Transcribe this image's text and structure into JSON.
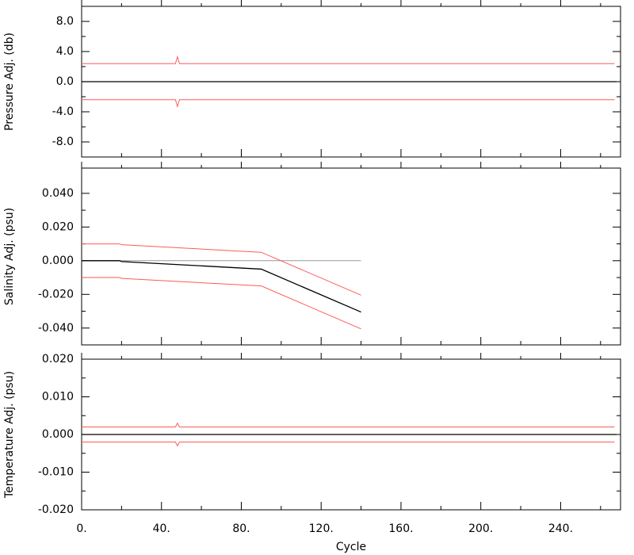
{
  "chart_data": [
    {
      "type": "line",
      "ylabel": "Pressure Adj. (db)",
      "ylim": [
        -10,
        10
      ],
      "yticks": [
        {
          "value": 8,
          "label": "8.0"
        },
        {
          "value": 4,
          "label": "4.0"
        },
        {
          "value": 0,
          "label": "0.0"
        },
        {
          "value": -4,
          "label": "-4.0"
        },
        {
          "value": -8,
          "label": "-8.0"
        }
      ],
      "series": [
        {
          "color": "#000000",
          "x": [
            0,
            268
          ],
          "values": [
            0,
            0
          ]
        },
        {
          "color": "#ff5a5a",
          "x": [
            0,
            47,
            48,
            49,
            267
          ],
          "values": [
            2.4,
            2.4,
            3.3,
            2.4,
            2.4
          ]
        },
        {
          "color": "#ff5a5a",
          "x": [
            0,
            47,
            48,
            49,
            267
          ],
          "values": [
            -2.4,
            -2.4,
            -3.3,
            -2.4,
            -2.4
          ]
        }
      ]
    },
    {
      "type": "line",
      "ylabel": "Salinity Adj. (psu)",
      "ylim": [
        -0.05,
        0.055
      ],
      "yticks": [
        {
          "value": 0.04,
          "label": "0.040"
        },
        {
          "value": 0.02,
          "label": "0.020"
        },
        {
          "value": 0,
          "label": "0.000"
        },
        {
          "value": -0.02,
          "label": "-0.020"
        },
        {
          "value": -0.04,
          "label": "-0.040"
        }
      ],
      "series": [
        {
          "color": "#999999",
          "x": [
            0,
            140
          ],
          "values": [
            0,
            0
          ]
        },
        {
          "color": "#000000",
          "x": [
            0,
            19,
            20,
            90,
            140
          ],
          "values": [
            0,
            0,
            -0.0005,
            -0.005,
            -0.0305
          ]
        },
        {
          "color": "#ff5a5a",
          "x": [
            0,
            19,
            20,
            90,
            140
          ],
          "values": [
            0.01,
            0.01,
            0.0095,
            0.005,
            -0.0205
          ]
        },
        {
          "color": "#ff5a5a",
          "x": [
            0,
            19,
            20,
            90,
            140
          ],
          "values": [
            -0.01,
            -0.01,
            -0.0105,
            -0.015,
            -0.0405
          ]
        }
      ]
    },
    {
      "type": "line",
      "ylabel": "Temperature Adj. (psu)",
      "xlabel": "Cycle",
      "xlim": [
        0,
        270
      ],
      "xticks": [
        {
          "value": 0,
          "label": "0."
        },
        {
          "value": 40,
          "label": "40."
        },
        {
          "value": 80,
          "label": "80."
        },
        {
          "value": 120,
          "label": "120."
        },
        {
          "value": 160,
          "label": "160."
        },
        {
          "value": 200,
          "label": "200."
        },
        {
          "value": 240,
          "label": "240."
        }
      ],
      "ylim": [
        -0.02,
        0.02
      ],
      "yticks": [
        {
          "value": 0.02,
          "label": "0.020"
        },
        {
          "value": 0.01,
          "label": "0.010"
        },
        {
          "value": 0,
          "label": "0.000"
        },
        {
          "value": -0.01,
          "label": "-0.010"
        },
        {
          "value": -0.02,
          "label": "-0.020"
        }
      ],
      "series": [
        {
          "color": "#000000",
          "x": [
            0,
            268
          ],
          "values": [
            0,
            0
          ]
        },
        {
          "color": "#ff5a5a",
          "x": [
            0,
            47,
            48,
            49,
            267
          ],
          "values": [
            0.002,
            0.002,
            0.003,
            0.002,
            0.002
          ]
        },
        {
          "color": "#ff5a5a",
          "x": [
            0,
            47,
            48,
            49,
            267
          ],
          "values": [
            -0.002,
            -0.002,
            -0.003,
            -0.002,
            -0.002
          ]
        }
      ]
    }
  ]
}
